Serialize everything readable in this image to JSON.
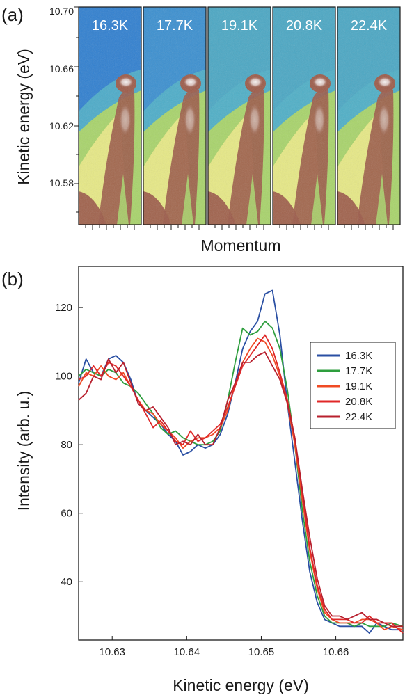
{
  "panel_a": {
    "label": "(a)",
    "ylabel": "Kinetic energy (eV)",
    "xlabel": "Momentum",
    "y_ticks": [
      "10.70",
      "10.66",
      "10.62",
      "10.58"
    ],
    "panels": [
      "16.3K",
      "17.7K",
      "19.1K",
      "20.8K",
      "22.4K"
    ],
    "colors": {
      "low": "#2f7fd0",
      "mid_low": "#4fb0c8",
      "mid": "#a8d46a",
      "mid_high": "#f2ec8a",
      "high": "#9c5a48",
      "peak": "#f4eeee"
    }
  },
  "panel_b": {
    "label": "(b)"
  },
  "chart_data": {
    "type": "line",
    "xlabel": "Kinetic energy (eV)",
    "ylabel": "Intensity (arb. u.)",
    "xlim": [
      10.6255,
      10.669
    ],
    "ylim": [
      23,
      132
    ],
    "x_ticks": [
      "10.63",
      "10.64",
      "10.65",
      "10.66"
    ],
    "x_tick_values": [
      10.63,
      10.64,
      10.65,
      10.66
    ],
    "y_ticks": [
      "40",
      "60",
      "80",
      "100",
      "120"
    ],
    "y_tick_values": [
      40,
      60,
      80,
      100,
      120
    ],
    "legend_position": "right",
    "series": [
      {
        "name": "16.3K",
        "color": "#2a4fa3",
        "x": [
          10.6255,
          10.6265,
          10.6275,
          10.6285,
          10.6295,
          10.6305,
          10.6315,
          10.6325,
          10.6335,
          10.6345,
          10.6355,
          10.6365,
          10.6375,
          10.6385,
          10.6395,
          10.6405,
          10.6415,
          10.6425,
          10.6435,
          10.6445,
          10.6455,
          10.6465,
          10.6475,
          10.6485,
          10.6495,
          10.6505,
          10.6515,
          10.6525,
          10.6535,
          10.6545,
          10.6555,
          10.6565,
          10.6575,
          10.6585,
          10.6595,
          10.6605,
          10.6615,
          10.6625,
          10.6635,
          10.6645,
          10.6655,
          10.6665,
          10.6675,
          10.669
        ],
        "y": [
          98,
          105,
          101,
          100,
          105,
          106,
          104,
          99,
          92,
          90,
          88,
          86,
          83,
          81,
          77,
          78,
          80,
          79,
          80,
          83,
          89,
          98,
          108,
          113,
          116,
          124,
          125,
          112,
          92,
          75,
          58,
          43,
          34,
          29,
          28,
          27,
          27,
          27,
          27,
          25,
          28,
          27,
          26,
          26
        ]
      },
      {
        "name": "17.7K",
        "color": "#2e9e3e",
        "x": [
          10.6255,
          10.6265,
          10.6275,
          10.6285,
          10.6295,
          10.6305,
          10.6315,
          10.6325,
          10.6335,
          10.6345,
          10.6355,
          10.6365,
          10.6375,
          10.6385,
          10.6395,
          10.6405,
          10.6415,
          10.6425,
          10.6435,
          10.6445,
          10.6455,
          10.6465,
          10.6475,
          10.6485,
          10.6495,
          10.6505,
          10.6515,
          10.6525,
          10.6535,
          10.6545,
          10.6555,
          10.6565,
          10.6575,
          10.6585,
          10.6595,
          10.6605,
          10.6615,
          10.6625,
          10.6635,
          10.6645,
          10.6655,
          10.6665,
          10.6675,
          10.669
        ],
        "y": [
          100,
          102,
          101,
          100,
          102,
          101,
          98,
          97,
          95,
          92,
          89,
          85,
          83,
          84,
          82,
          81,
          80,
          80,
          81,
          84,
          93,
          104,
          114,
          112,
          113,
          116,
          114,
          108,
          96,
          80,
          61,
          46,
          36,
          30,
          28,
          28,
          28,
          27,
          28,
          27,
          27,
          27,
          28,
          27
        ]
      },
      {
        "name": "19.1K",
        "color": "#f04a24",
        "x": [
          10.6255,
          10.6265,
          10.6275,
          10.6285,
          10.6295,
          10.6305,
          10.6315,
          10.6325,
          10.6335,
          10.6345,
          10.6355,
          10.6365,
          10.6375,
          10.6385,
          10.6395,
          10.6405,
          10.6415,
          10.6425,
          10.6435,
          10.6445,
          10.6455,
          10.6465,
          10.6475,
          10.6485,
          10.6495,
          10.6505,
          10.6515,
          10.6525,
          10.6535,
          10.6545,
          10.6555,
          10.6565,
          10.6575,
          10.6585,
          10.6595,
          10.6605,
          10.6615,
          10.6625,
          10.6635,
          10.6645,
          10.6655,
          10.6665,
          10.6675,
          10.669
        ],
        "y": [
          97,
          101,
          100,
          103,
          100,
          99,
          101,
          97,
          93,
          90,
          89,
          86,
          84,
          82,
          79,
          81,
          82,
          82,
          83,
          85,
          90,
          98,
          104,
          108,
          111,
          110,
          106,
          100,
          92,
          80,
          64,
          49,
          38,
          31,
          29,
          28,
          28,
          28,
          29,
          29,
          28,
          26,
          27,
          26
        ]
      },
      {
        "name": "20.8K",
        "color": "#e02828",
        "x": [
          10.6255,
          10.6265,
          10.6275,
          10.6285,
          10.6295,
          10.6305,
          10.6315,
          10.6325,
          10.6335,
          10.6345,
          10.6355,
          10.6365,
          10.6375,
          10.6385,
          10.6395,
          10.6405,
          10.6415,
          10.6425,
          10.6435,
          10.6445,
          10.6455,
          10.6465,
          10.6475,
          10.6485,
          10.6495,
          10.6505,
          10.6515,
          10.6525,
          10.6535,
          10.6545,
          10.6555,
          10.6565,
          10.6575,
          10.6585,
          10.6595,
          10.6605,
          10.6615,
          10.6625,
          10.6635,
          10.6645,
          10.6655,
          10.6665,
          10.6675,
          10.669
        ],
        "y": [
          99,
          100,
          103,
          100,
          104,
          103,
          100,
          97,
          93,
          89,
          85,
          87,
          84,
          81,
          80,
          84,
          81,
          82,
          84,
          86,
          91,
          97,
          103,
          106,
          109,
          112,
          108,
          101,
          93,
          82,
          66,
          50,
          39,
          32,
          29,
          29,
          29,
          28,
          28,
          30,
          28,
          28,
          28,
          25
        ]
      },
      {
        "name": "22.4K",
        "color": "#b8202e",
        "x": [
          10.6255,
          10.6265,
          10.6275,
          10.6285,
          10.6295,
          10.6305,
          10.6315,
          10.6325,
          10.6335,
          10.6345,
          10.6355,
          10.6365,
          10.6375,
          10.6385,
          10.6395,
          10.6405,
          10.6415,
          10.6425,
          10.6435,
          10.6445,
          10.6455,
          10.6465,
          10.6475,
          10.6485,
          10.6495,
          10.6505,
          10.6515,
          10.6525,
          10.6535,
          10.6545,
          10.6555,
          10.6565,
          10.6575,
          10.6585,
          10.6595,
          10.6605,
          10.6615,
          10.6625,
          10.6635,
          10.6645,
          10.6655,
          10.6665,
          10.6675,
          10.669
        ],
        "y": [
          93,
          95,
          100,
          99,
          105,
          101,
          104,
          98,
          92,
          90,
          91,
          88,
          85,
          80,
          81,
          80,
          83,
          80,
          80,
          85,
          93,
          98,
          104,
          104,
          106,
          107,
          103,
          99,
          92,
          82,
          67,
          53,
          41,
          33,
          30,
          30,
          29,
          30,
          31,
          29,
          29,
          28,
          27,
          27
        ]
      }
    ]
  }
}
